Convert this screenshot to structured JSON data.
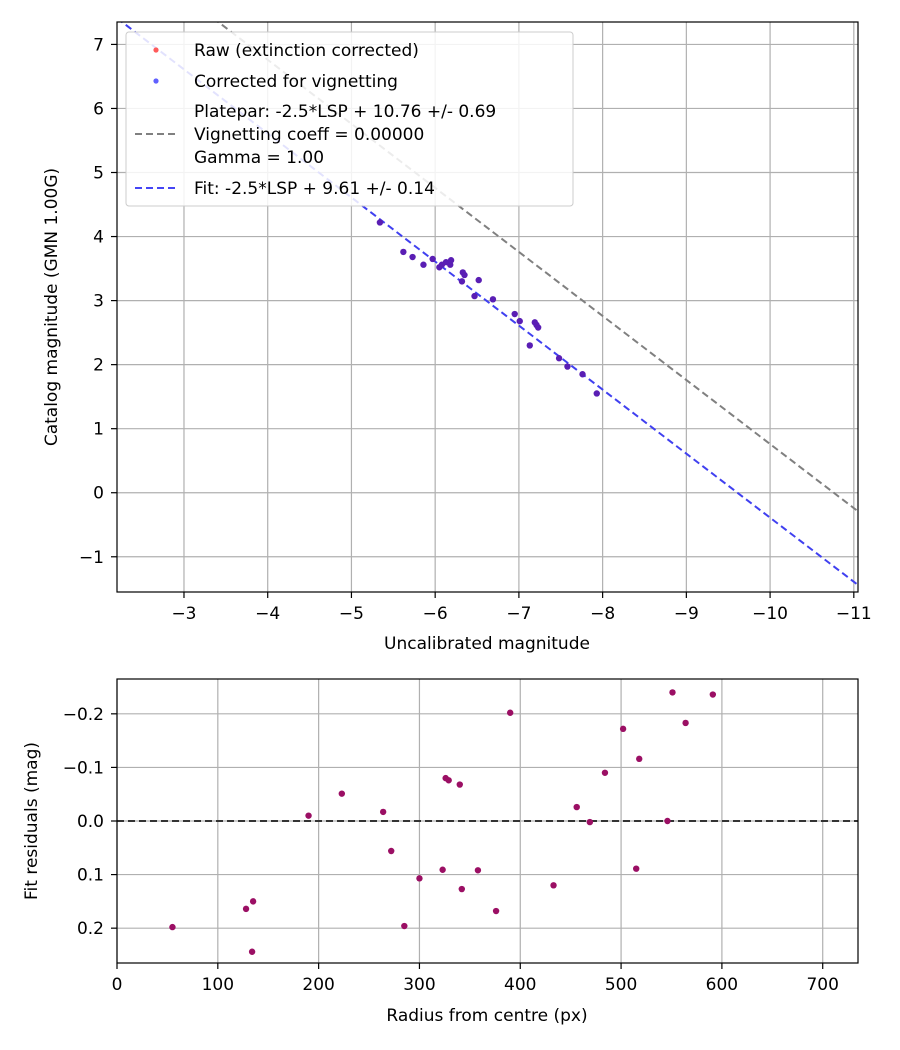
{
  "chart_data": [
    {
      "type": "scatter",
      "title": "",
      "xlabel": "Uncalibrated magnitude",
      "ylabel": "Catalog magnitude (GMN 1.00G)",
      "xlim": [
        -2.2,
        -11.05
      ],
      "ylim": [
        7.35,
        -1.55
      ],
      "xticks": [
        -3,
        -4,
        -5,
        -6,
        -7,
        -8,
        -9,
        -10,
        -11
      ],
      "xtick_labels": [
        "−3",
        "−4",
        "−5",
        "−6",
        "−7",
        "−8",
        "−9",
        "−10",
        "−11"
      ],
      "yticks": [
        -1,
        0,
        1,
        2,
        3,
        4,
        5,
        6,
        7
      ],
      "ytick_labels": [
        "−1",
        "0",
        "1",
        "2",
        "3",
        "4",
        "5",
        "6",
        "7"
      ],
      "grid": true,
      "legend_position": "top-left",
      "legend": [
        {
          "label": "Raw (extinction corrected)",
          "kind": "marker",
          "color": "#ff5a5a"
        },
        {
          "label": "Corrected for vignetting",
          "kind": "marker",
          "color": "#6060ff"
        },
        {
          "label": "Platepar: -2.5*LSP + 10.76 +/- 0.69",
          "line2": "Vignetting coeff = 0.00000",
          "line3": "Gamma = 1.00",
          "kind": "dashed",
          "color": "#808080"
        },
        {
          "label": "Fit: -2.5*LSP + 9.61 +/- 0.14",
          "kind": "dashed",
          "color": "#4545f5"
        }
      ],
      "lines": [
        {
          "name": "Platepar",
          "slope": 1.0,
          "intercept": 10.76,
          "color": "#808080"
        },
        {
          "name": "Fit",
          "slope": 1.0,
          "intercept": 9.61,
          "color": "#4040f0"
        }
      ],
      "point_color": "#5a1eb4",
      "points": [
        {
          "x": -5.34,
          "y": 4.22
        },
        {
          "x": -5.62,
          "y": 3.76
        },
        {
          "x": -5.73,
          "y": 3.68
        },
        {
          "x": -5.86,
          "y": 3.56
        },
        {
          "x": -5.97,
          "y": 3.65
        },
        {
          "x": -6.05,
          "y": 3.52
        },
        {
          "x": -6.08,
          "y": 3.56
        },
        {
          "x": -6.13,
          "y": 3.6
        },
        {
          "x": -6.18,
          "y": 3.56
        },
        {
          "x": -6.19,
          "y": 3.63
        },
        {
          "x": -6.32,
          "y": 3.3
        },
        {
          "x": -6.33,
          "y": 3.44
        },
        {
          "x": -6.35,
          "y": 3.4
        },
        {
          "x": -6.47,
          "y": 3.07
        },
        {
          "x": -6.52,
          "y": 3.32
        },
        {
          "x": -6.69,
          "y": 3.02
        },
        {
          "x": -6.95,
          "y": 2.79
        },
        {
          "x": -7.01,
          "y": 2.68
        },
        {
          "x": -7.13,
          "y": 2.3
        },
        {
          "x": -7.19,
          "y": 2.66
        },
        {
          "x": -7.21,
          "y": 2.62
        },
        {
          "x": -7.23,
          "y": 2.58
        },
        {
          "x": -7.48,
          "y": 2.1
        },
        {
          "x": -7.58,
          "y": 1.97
        },
        {
          "x": -7.76,
          "y": 1.85
        },
        {
          "x": -7.93,
          "y": 1.55
        }
      ]
    },
    {
      "type": "scatter",
      "title": "",
      "xlabel": "Radius from centre (px)",
      "ylabel": "Fit residuals (mag)",
      "xlim": [
        0,
        735
      ],
      "ylim": [
        -0.265,
        0.265
      ],
      "xticks": [
        0,
        100,
        200,
        300,
        400,
        500,
        600,
        700
      ],
      "xtick_labels": [
        "0",
        "100",
        "200",
        "300",
        "400",
        "500",
        "600",
        "700"
      ],
      "yticks": [
        -0.2,
        -0.1,
        0.0,
        0.1,
        0.2
      ],
      "ytick_labels": [
        "−0.2",
        "−0.1",
        "0.0",
        "0.1",
        "0.2"
      ],
      "grid": true,
      "reference_line": {
        "y": 0.0,
        "style": "dashed",
        "color": "#333333"
      },
      "point_color": "#9b0f64",
      "points": [
        {
          "x": 55,
          "y": 0.198
        },
        {
          "x": 128,
          "y": 0.164
        },
        {
          "x": 134,
          "y": 0.244
        },
        {
          "x": 135,
          "y": 0.15
        },
        {
          "x": 190,
          "y": -0.01
        },
        {
          "x": 223,
          "y": -0.051
        },
        {
          "x": 264,
          "y": -0.017
        },
        {
          "x": 272,
          "y": 0.056
        },
        {
          "x": 285,
          "y": 0.196
        },
        {
          "x": 300,
          "y": 0.107
        },
        {
          "x": 323,
          "y": 0.091
        },
        {
          "x": 326,
          "y": -0.08
        },
        {
          "x": 329,
          "y": -0.076
        },
        {
          "x": 340,
          "y": -0.068
        },
        {
          "x": 342,
          "y": 0.127
        },
        {
          "x": 358,
          "y": 0.092
        },
        {
          "x": 376,
          "y": 0.168
        },
        {
          "x": 390,
          "y": -0.202
        },
        {
          "x": 433,
          "y": 0.12
        },
        {
          "x": 456,
          "y": -0.026
        },
        {
          "x": 469,
          "y": 0.002
        },
        {
          "x": 484,
          "y": -0.09
        },
        {
          "x": 502,
          "y": -0.172
        },
        {
          "x": 515,
          "y": 0.089
        },
        {
          "x": 518,
          "y": -0.116
        },
        {
          "x": 546,
          "y": 0.0
        },
        {
          "x": 551,
          "y": -0.24
        },
        {
          "x": 564,
          "y": -0.183
        },
        {
          "x": 591,
          "y": -0.236
        }
      ]
    }
  ]
}
